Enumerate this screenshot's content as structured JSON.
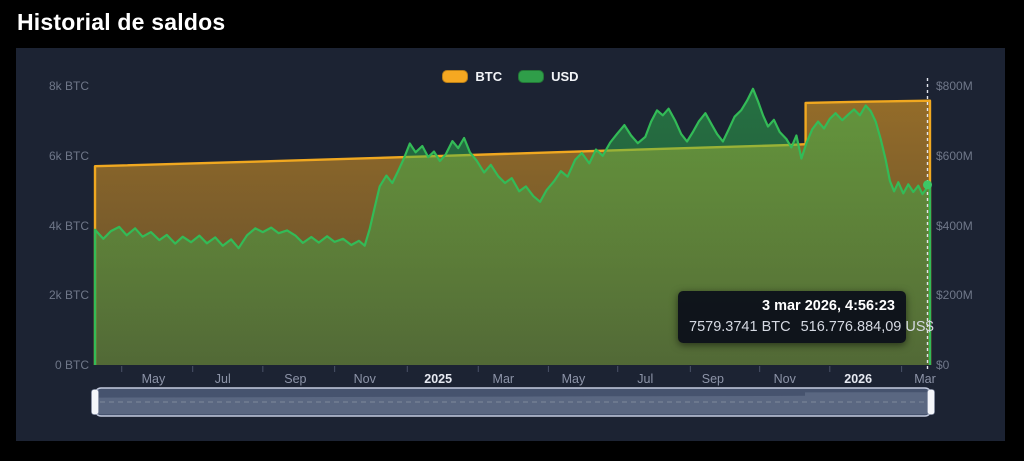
{
  "page": {
    "title": "Historial de saldos"
  },
  "legend": [
    {
      "name": "btc",
      "label": "BTC",
      "color": "#f6a821"
    },
    {
      "name": "usd",
      "label": "USD",
      "color": "#2f9e49"
    }
  ],
  "tooltip": {
    "datetime": "3 mar 2026, 4:56:23",
    "btc": "7579.3741 BTC",
    "usd": "516.776.884,09 US$"
  },
  "colors": {
    "panel_bg": "#1c2333",
    "btc_line": "#f0a820",
    "usd_line": "#33bb57",
    "axis_text": "#6f7789",
    "month_text": "#8d94a8",
    "year_text": "#e6e9f1",
    "navigator_fill": "#46536e",
    "navigator_border": "#c3cbdf",
    "handle_fill": "#f4f6fa"
  },
  "chart_data": {
    "type": "area",
    "title": "Historial de saldos",
    "x_range": [
      "mar 2024",
      "mar 2026"
    ],
    "grid": false,
    "legend_position": "top-center",
    "left_axis": {
      "unit": "BTC",
      "min": 0,
      "max": 8000,
      "ticks": [
        {
          "v": 8000,
          "label": "8k BTC"
        },
        {
          "v": 6000,
          "label": "6k BTC"
        },
        {
          "v": 4000,
          "label": "4k BTC"
        },
        {
          "v": 2000,
          "label": "2k BTC"
        },
        {
          "v": 0,
          "label": "0 BTC"
        }
      ]
    },
    "right_axis": {
      "unit": "USD",
      "min": 0,
      "max": 800,
      "ticks": [
        {
          "v": 800,
          "label": "$800M"
        },
        {
          "v": 600,
          "label": "$600M"
        },
        {
          "v": 400,
          "label": "$400M"
        },
        {
          "v": 200,
          "label": "$200M"
        },
        {
          "v": 0,
          "label": "$0"
        }
      ]
    },
    "bottom_labels": [
      {
        "t": 0.07,
        "label": "May"
      },
      {
        "t": 0.153,
        "label": "Jul"
      },
      {
        "t": 0.24,
        "label": "Sep"
      },
      {
        "t": 0.323,
        "label": "Nov"
      },
      {
        "t": 0.411,
        "label": "2025",
        "bold": true
      },
      {
        "t": 0.489,
        "label": "Mar"
      },
      {
        "t": 0.573,
        "label": "May"
      },
      {
        "t": 0.659,
        "label": "Jul"
      },
      {
        "t": 0.74,
        "label": "Sep"
      },
      {
        "t": 0.826,
        "label": "Nov"
      },
      {
        "t": 0.914,
        "label": "2026",
        "bold": true
      },
      {
        "t": 0.994,
        "label": "Mar"
      }
    ],
    "tick_ts": [
      0.032,
      0.117,
      0.201,
      0.287,
      0.374,
      0.459,
      0.543,
      0.626,
      0.713,
      0.796,
      0.88,
      0.966
    ],
    "cursor": {
      "t": 0.997,
      "datetime": "3 mar 2026, 4:56:23",
      "btc_value": 7579.3741,
      "usd_value_musd": 516.8
    },
    "series": [
      {
        "name": "BTC",
        "axis": "left",
        "color": "#f0a820",
        "points": [
          [
            0,
            5700
          ],
          [
            0.19,
            5830
          ],
          [
            0.41,
            5990
          ],
          [
            0.6,
            6140
          ],
          [
            0.725,
            6230
          ],
          [
            0.83,
            6305
          ],
          [
            0.851,
            6330
          ],
          [
            0.851,
            7515
          ],
          [
            0.92,
            7550
          ],
          [
            1,
            7579
          ]
        ]
      },
      {
        "name": "USD",
        "axis": "right",
        "color": "#33bb57",
        "points": [
          [
            0,
            388
          ],
          [
            0.01,
            362
          ],
          [
            0.019,
            384
          ],
          [
            0.029,
            396
          ],
          [
            0.038,
            372
          ],
          [
            0.048,
            392
          ],
          [
            0.057,
            368
          ],
          [
            0.067,
            381
          ],
          [
            0.077,
            358
          ],
          [
            0.086,
            373
          ],
          [
            0.096,
            348
          ],
          [
            0.105,
            368
          ],
          [
            0.115,
            352
          ],
          [
            0.125,
            371
          ],
          [
            0.134,
            349
          ],
          [
            0.144,
            366
          ],
          [
            0.153,
            342
          ],
          [
            0.163,
            360
          ],
          [
            0.172,
            335
          ],
          [
            0.182,
            372
          ],
          [
            0.192,
            392
          ],
          [
            0.201,
            381
          ],
          [
            0.211,
            394
          ],
          [
            0.22,
            378
          ],
          [
            0.23,
            386
          ],
          [
            0.24,
            371
          ],
          [
            0.249,
            350
          ],
          [
            0.259,
            367
          ],
          [
            0.268,
            351
          ],
          [
            0.278,
            369
          ],
          [
            0.287,
            353
          ],
          [
            0.297,
            362
          ],
          [
            0.307,
            344
          ],
          [
            0.316,
            356
          ],
          [
            0.323,
            342
          ],
          [
            0.329,
            390
          ],
          [
            0.335,
            452
          ],
          [
            0.341,
            512
          ],
          [
            0.349,
            543
          ],
          [
            0.356,
            522
          ],
          [
            0.363,
            556
          ],
          [
            0.37,
            592
          ],
          [
            0.377,
            635
          ],
          [
            0.384,
            610
          ],
          [
            0.392,
            628
          ],
          [
            0.399,
            596
          ],
          [
            0.406,
            612
          ],
          [
            0.413,
            585
          ],
          [
            0.42,
            604
          ],
          [
            0.428,
            642
          ],
          [
            0.435,
            622
          ],
          [
            0.442,
            651
          ],
          [
            0.449,
            610
          ],
          [
            0.457,
            586
          ],
          [
            0.466,
            552
          ],
          [
            0.474,
            574
          ],
          [
            0.483,
            541
          ],
          [
            0.491,
            522
          ],
          [
            0.499,
            536
          ],
          [
            0.508,
            498
          ],
          [
            0.516,
            512
          ],
          [
            0.525,
            484
          ],
          [
            0.533,
            468
          ],
          [
            0.541,
            502
          ],
          [
            0.55,
            528
          ],
          [
            0.558,
            556
          ],
          [
            0.566,
            540
          ],
          [
            0.575,
            588
          ],
          [
            0.583,
            608
          ],
          [
            0.592,
            578
          ],
          [
            0.6,
            618
          ],
          [
            0.608,
            600
          ],
          [
            0.617,
            638
          ],
          [
            0.625,
            662
          ],
          [
            0.634,
            688
          ],
          [
            0.642,
            658
          ],
          [
            0.65,
            636
          ],
          [
            0.659,
            654
          ],
          [
            0.666,
            698
          ],
          [
            0.673,
            730
          ],
          [
            0.68,
            716
          ],
          [
            0.687,
            735
          ],
          [
            0.695,
            700
          ],
          [
            0.702,
            662
          ],
          [
            0.709,
            641
          ],
          [
            0.716,
            668
          ],
          [
            0.723,
            698
          ],
          [
            0.731,
            722
          ],
          [
            0.738,
            692
          ],
          [
            0.745,
            662
          ],
          [
            0.752,
            641
          ],
          [
            0.759,
            676
          ],
          [
            0.766,
            712
          ],
          [
            0.774,
            731
          ],
          [
            0.781,
            758
          ],
          [
            0.788,
            792
          ],
          [
            0.794,
            756
          ],
          [
            0.8,
            716
          ],
          [
            0.806,
            684
          ],
          [
            0.813,
            703
          ],
          [
            0.82,
            668
          ],
          [
            0.828,
            648
          ],
          [
            0.834,
            624
          ],
          [
            0.84,
            658
          ],
          [
            0.846,
            592
          ],
          [
            0.852,
            636
          ],
          [
            0.859,
            676
          ],
          [
            0.866,
            698
          ],
          [
            0.873,
            678
          ],
          [
            0.88,
            706
          ],
          [
            0.887,
            722
          ],
          [
            0.895,
            702
          ],
          [
            0.902,
            718
          ],
          [
            0.909,
            733
          ],
          [
            0.916,
            716
          ],
          [
            0.923,
            744
          ],
          [
            0.929,
            728
          ],
          [
            0.935,
            698
          ],
          [
            0.941,
            648
          ],
          [
            0.947,
            588
          ],
          [
            0.952,
            528
          ],
          [
            0.957,
            498
          ],
          [
            0.962,
            524
          ],
          [
            0.968,
            492
          ],
          [
            0.974,
            518
          ],
          [
            0.98,
            496
          ],
          [
            0.986,
            514
          ],
          [
            0.991,
            490
          ],
          [
            0.997,
            510
          ],
          [
            1,
            517
          ]
        ]
      }
    ]
  }
}
